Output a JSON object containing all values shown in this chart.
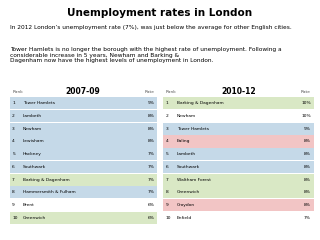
{
  "title": "Unemployment rates in London",
  "intro_text1": "In 2012 London’s unemployment rate (7%), was just below the average for other English cities.",
  "intro_text2": "Tower Hamlets is no longer the borough with the highest rate of unemployment. Following a considerable increase in 5 years, Newham and Barking &\nDagenham now have the highest levels of unemployment in London.",
  "period1_label": "2007-09",
  "period2_label": "2010-12",
  "table1": [
    {
      "rank": 1,
      "name": "Tower Hamlets",
      "rate": "9%",
      "color": "blue"
    },
    {
      "rank": 2,
      "name": "Lambeth",
      "rate": "8%",
      "color": "blue"
    },
    {
      "rank": 3,
      "name": "Newham",
      "rate": "8%",
      "color": "blue"
    },
    {
      "rank": 4,
      "name": "Lewisham",
      "rate": "8%",
      "color": "blue"
    },
    {
      "rank": 5,
      "name": "Hackney",
      "rate": "7%",
      "color": "blue"
    },
    {
      "rank": 6,
      "name": "Southwark",
      "rate": "7%",
      "color": "blue"
    },
    {
      "rank": 7,
      "name": "Barking & Dagenham",
      "rate": "7%",
      "color": "green"
    },
    {
      "rank": 8,
      "name": "Hammersmith & Fulham",
      "rate": "7%",
      "color": "blue"
    },
    {
      "rank": 9,
      "name": "Brent",
      "rate": "6%",
      "color": "none"
    },
    {
      "rank": 10,
      "name": "Greenwich",
      "rate": "6%",
      "color": "green"
    }
  ],
  "table2": [
    {
      "rank": 1,
      "name": "Barking & Dagenham",
      "rate": "10%",
      "color": "green"
    },
    {
      "rank": 2,
      "name": "Newham",
      "rate": "10%",
      "color": "none"
    },
    {
      "rank": 3,
      "name": "Tower Hamlets",
      "rate": "9%",
      "color": "blue"
    },
    {
      "rank": 4,
      "name": "Ealing",
      "rate": "8%",
      "color": "red"
    },
    {
      "rank": 5,
      "name": "Lambeth",
      "rate": "8%",
      "color": "blue"
    },
    {
      "rank": 6,
      "name": "Southwark",
      "rate": "8%",
      "color": "blue"
    },
    {
      "rank": 7,
      "name": "Waltham Forest",
      "rate": "8%",
      "color": "green"
    },
    {
      "rank": 8,
      "name": "Greenwich",
      "rate": "8%",
      "color": "green"
    },
    {
      "rank": 9,
      "name": "Croydon",
      "rate": "8%",
      "color": "red"
    },
    {
      "rank": 10,
      "name": "Enfield",
      "rate": "7%",
      "color": "none"
    }
  ],
  "color_map": {
    "blue": "#c5d9e8",
    "green": "#d9e8c5",
    "red": "#f2c5c5",
    "none": "#ffffff"
  }
}
